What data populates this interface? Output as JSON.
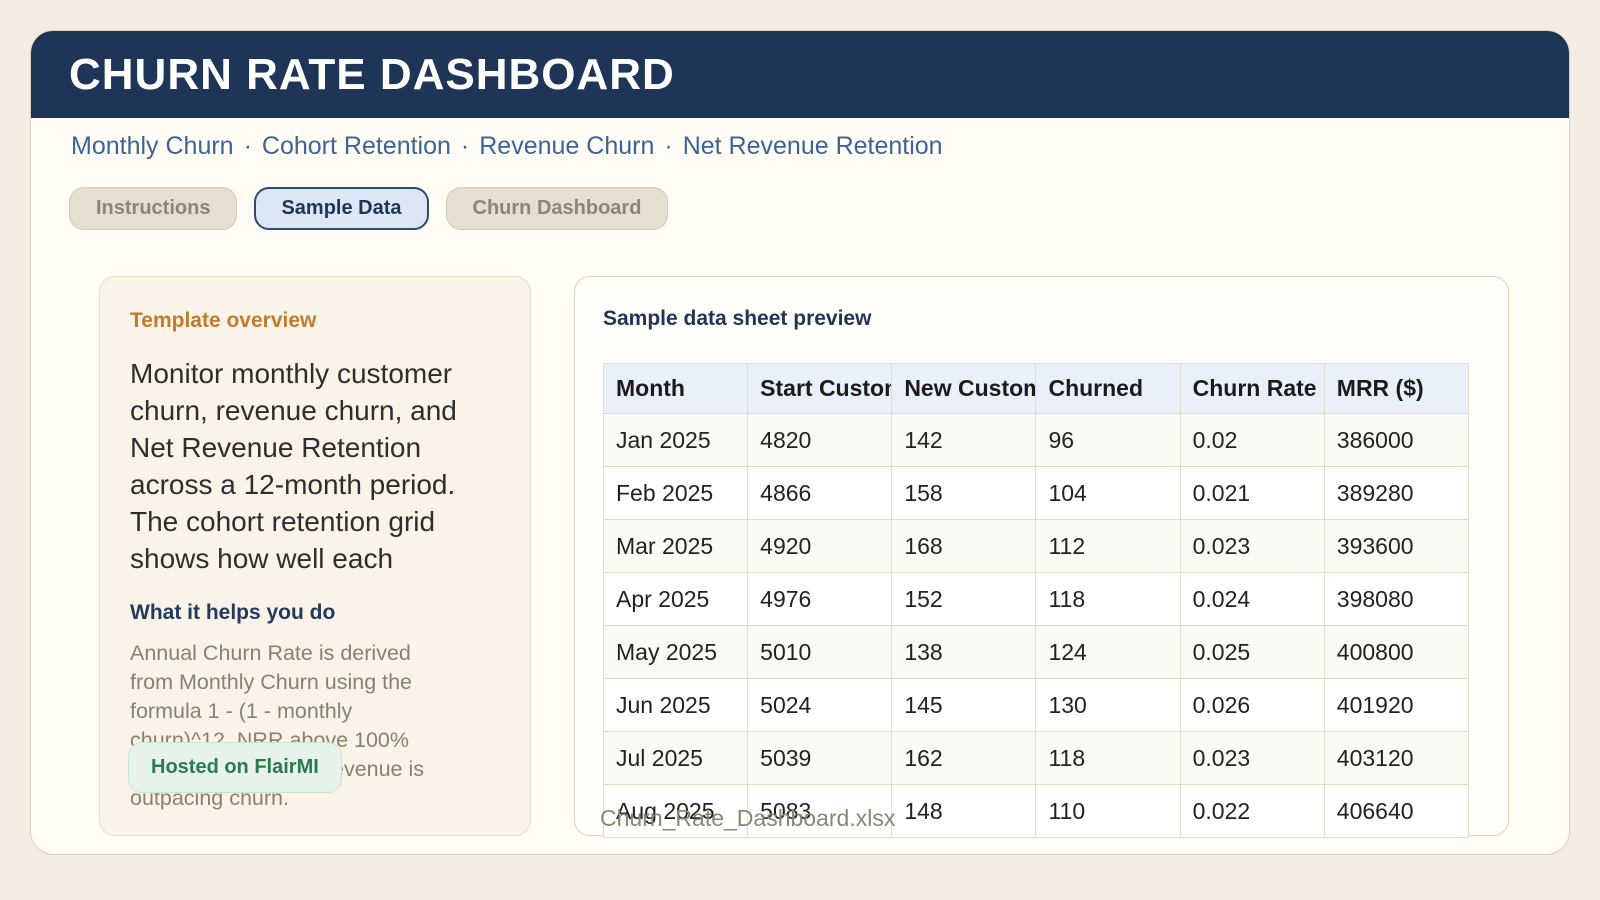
{
  "header": {
    "title": "CHURN RATE DASHBOARD"
  },
  "nav": {
    "separator": "·",
    "links": [
      {
        "label": "Monthly Churn"
      },
      {
        "label": "Cohort Retention"
      },
      {
        "label": "Revenue Churn"
      },
      {
        "label": "Net Revenue Retention"
      }
    ]
  },
  "tabs": [
    {
      "label": "Instructions",
      "active": false
    },
    {
      "label": "Sample Data",
      "active": true
    },
    {
      "label": "Churn Dashboard",
      "active": false
    }
  ],
  "overview": {
    "heading": "Template overview",
    "body_lines": [
      "Monitor monthly customer",
      "churn, revenue churn, and",
      "Net Revenue Retention",
      "across a 12-month period.",
      "The cohort retention grid",
      "shows how well each"
    ],
    "subheading": "What it helps you do",
    "detail_lines": [
      "Annual Churn Rate is derived",
      "from Monthly Churn using the",
      "formula 1 - (1 - monthly",
      "churn)^12. NRR above 100%",
      "indicates expansion revenue is",
      "outpacing churn."
    ],
    "badge_label": "Hosted on FlairMI"
  },
  "preview": {
    "heading": "Sample data sheet preview",
    "filename": "Churn_Rate_Dashboard.xlsx",
    "table": {
      "columns": [
        "Month",
        "Start Customers",
        "New Customers",
        "Churned",
        "Churn Rate",
        "MRR ($)"
      ],
      "rows": [
        [
          "Jan 2025",
          "4820",
          "142",
          "96",
          "0.02",
          "386000"
        ],
        [
          "Feb 2025",
          "4866",
          "158",
          "104",
          "0.021",
          "389280"
        ],
        [
          "Mar 2025",
          "4920",
          "168",
          "112",
          "0.023",
          "393600"
        ],
        [
          "Apr 2025",
          "4976",
          "152",
          "118",
          "0.024",
          "398080"
        ],
        [
          "May 2025",
          "5010",
          "138",
          "124",
          "0.025",
          "400800"
        ],
        [
          "Jun 2025",
          "5024",
          "145",
          "130",
          "0.026",
          "401920"
        ],
        [
          "Jul 2025",
          "5039",
          "162",
          "118",
          "0.023",
          "403120"
        ],
        [
          "Aug 2025",
          "5083",
          "148",
          "110",
          "0.022",
          "406640"
        ]
      ]
    }
  },
  "colors": {
    "header_navy": "#1f3557",
    "nav_link_blue": "#3c6496",
    "accent_orange": "#bf7c2c",
    "badge_green_text": "#2b7a50",
    "badge_green_bg": "#e7f3ea",
    "active_tab_bg": "#dce7f6",
    "table_header_bg": "#e9f0fa",
    "page_bg": "#f2ece2",
    "card_bg": "#fffdf5",
    "muted_gray": "#8b8577"
  }
}
